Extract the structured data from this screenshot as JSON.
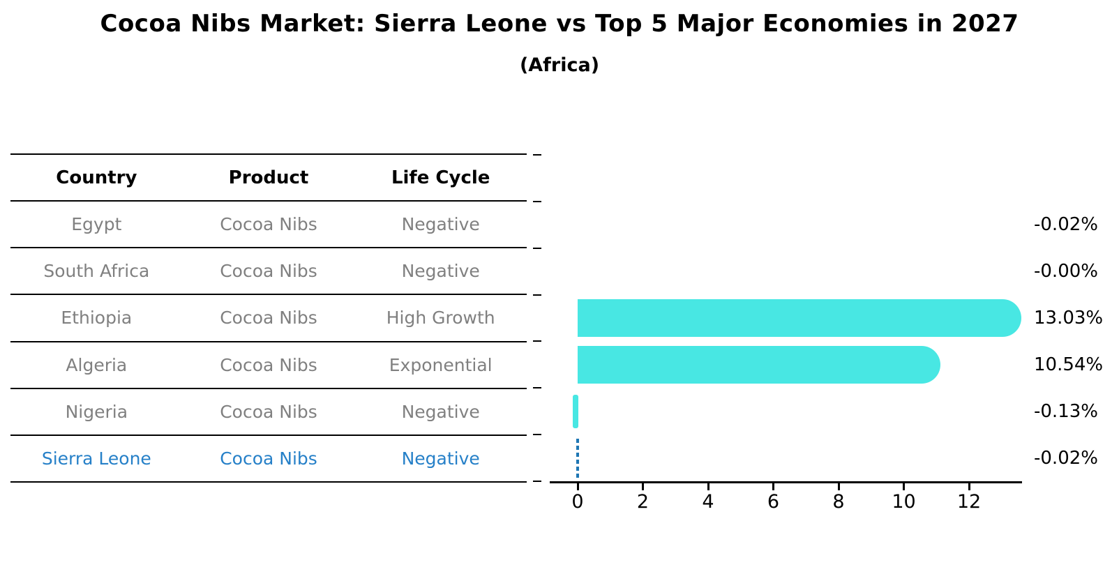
{
  "title": "Cocoa Nibs Market: Sierra Leone vs Top 5 Major Economies in 2027",
  "subtitle": "(Africa)",
  "table": {
    "headers": [
      "Country",
      "Product",
      "Life Cycle"
    ],
    "rows": [
      {
        "country": "Egypt",
        "product": "Cocoa Nibs",
        "life_cycle": "Negative",
        "highlighted": false
      },
      {
        "country": "South Africa",
        "product": "Cocoa Nibs",
        "life_cycle": "Negative",
        "highlighted": false
      },
      {
        "country": "Ethiopia",
        "product": "Cocoa Nibs",
        "life_cycle": "High Growth",
        "highlighted": false
      },
      {
        "country": "Algeria",
        "product": "Cocoa Nibs",
        "life_cycle": "Exponential",
        "highlighted": false
      },
      {
        "country": "Nigeria",
        "product": "Cocoa Nibs",
        "life_cycle": "Negative",
        "highlighted": false
      },
      {
        "country": "Sierra Leone",
        "product": "Cocoa Nibs",
        "life_cycle": "Negative",
        "highlighted": true
      }
    ]
  },
  "chart_data": {
    "type": "bar",
    "orientation": "horizontal",
    "categories": [
      "Egypt",
      "South Africa",
      "Ethiopia",
      "Algeria",
      "Nigeria",
      "Sierra Leone"
    ],
    "values": [
      -0.02,
      -0.0,
      13.03,
      10.54,
      -0.13,
      -0.02
    ],
    "value_labels": [
      "-0.02%",
      "-0.00%",
      "13.03%",
      "10.54%",
      "-0.13%",
      "-0.02%"
    ],
    "x_ticks": [
      "0",
      "2",
      "4",
      "6",
      "8",
      "10",
      "12"
    ],
    "xlim": [
      -0.85,
      13.65
    ],
    "grid": false,
    "legend": false,
    "bar_color": "#48E7E3",
    "highlight_index": 5,
    "highlight_marker": "dashed-vertical-line-at-zero",
    "highlight_color": "#1F77B4",
    "text_colors": {
      "table_data": "#808080",
      "table_header": "#000000",
      "highlight_row": "#2680C8",
      "axis_labels": "#000000"
    }
  }
}
